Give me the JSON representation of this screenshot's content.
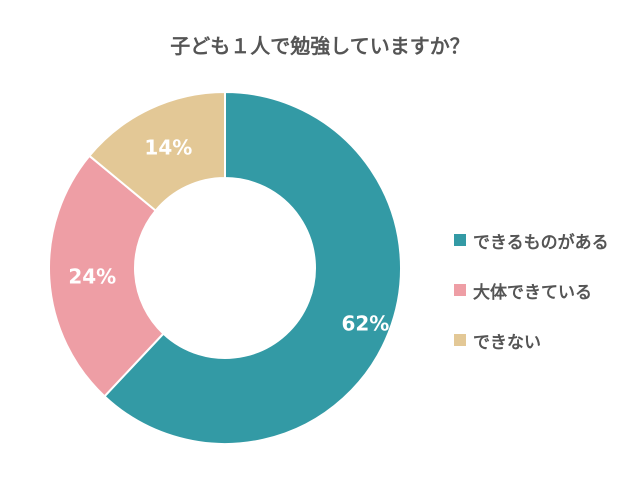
{
  "chart_data": {
    "type": "pie",
    "subtype": "donut",
    "title": "子ども１人で勉強していますか？",
    "categories": [
      "できるものがある",
      "大体できている",
      "できない"
    ],
    "values": [
      62,
      24,
      14
    ],
    "value_labels": [
      "62%",
      "24%",
      "14%"
    ],
    "colors": [
      "#339aa5",
      "#ee9ea5",
      "#e3c896"
    ],
    "legend_position": "right",
    "start_angle": "12 o'clock, clockwise"
  }
}
